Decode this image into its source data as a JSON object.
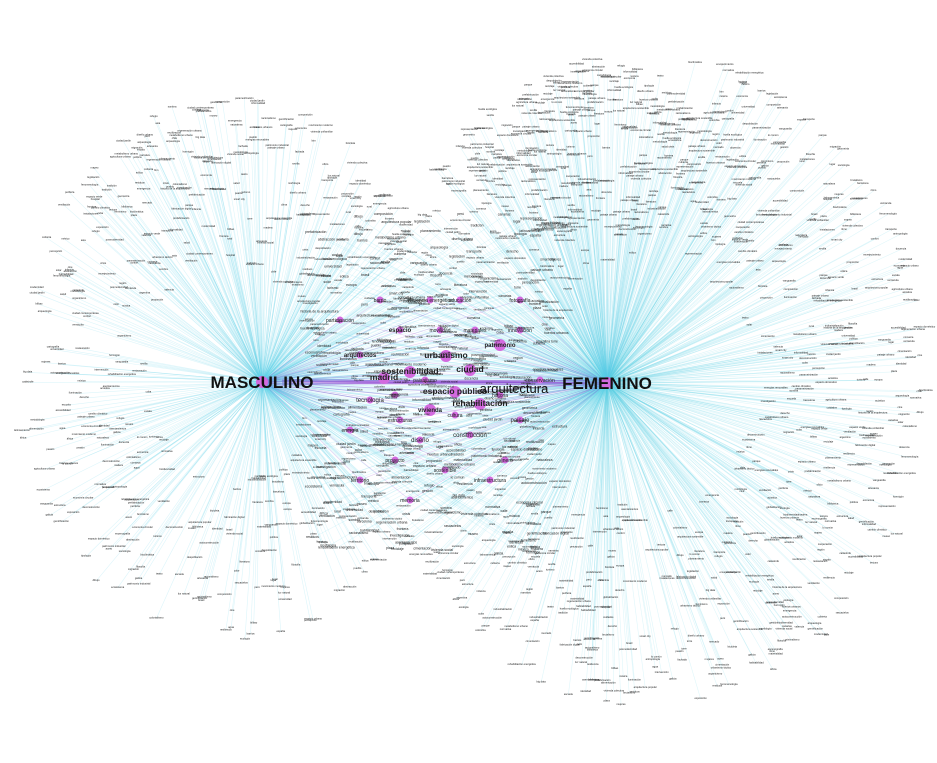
{
  "colors": {
    "background": "#ffffff",
    "edge_masculino": "#5fd0e8",
    "edge_femenino": "#5fd0e8",
    "edge_core": "#8a3fd0",
    "node_core": "#d36adf",
    "node_small": "#9ad9ee",
    "label": "#222222"
  },
  "hubs": {
    "masculino": "MASCULINO",
    "femenino": "FEMENINO",
    "arquitectura": "arquitectura"
  },
  "core_terms": [
    "madrid",
    "sostenibilidad",
    "urbanismo",
    "ciudad",
    "espacio público",
    "rehabilitación",
    "vivienda",
    "patrimonio",
    "espacio",
    "arquitectos",
    "tecnología",
    "diseño",
    "construcción",
    "paisaje",
    "género",
    "sostenible",
    "proyecto",
    "energía",
    "participación",
    "educación",
    "fotografía",
    "conservación",
    "eficiencia energética",
    "infraestructura",
    "memoria",
    "territorio",
    "innovación",
    "materiales",
    "estructuras",
    "movilidad",
    "barrio",
    "historia",
    "cultura",
    "arte",
    "paisajismo"
  ],
  "peripheral_terms": [
    "arquitectura sostenible",
    "arquitectura popular",
    "historia de la arquitectura",
    "patrimonio industrial",
    "vivienda social",
    "regeneración urbana",
    "diseño urbano",
    "espacio doméstico",
    "ciudad contemporánea",
    "crisis",
    "modernidad",
    "representación",
    "dibujo",
    "geometría",
    "ecología",
    "cooperación",
    "habitabilidad",
    "accesibilidad",
    "iluminación",
    "acústica",
    "planeamiento",
    "gestión",
    "metodología",
    "docencia",
    "investigación",
    "periferia",
    "ciudad jardín",
    "hormigón",
    "madera",
    "acero",
    "bioclimática",
    "confort",
    "rehabilitación energética",
    "reciclaje",
    "feminismo",
    "mujeres",
    "cuidados",
    "infancia",
    "envejecimiento",
    "turismo",
    "gentrificación",
    "espacio urbano",
    "calle",
    "plaza",
    "parque",
    "naturaleza",
    "agua",
    "clima",
    "cambio climático",
    "resiliencia",
    "smart city",
    "big data",
    "bim",
    "parametrización",
    "fabricación digital",
    "prefabricación",
    "industrialización",
    "tipología",
    "morfología",
    "cartografía",
    "mapeo",
    "narrativa",
    "percepción",
    "fenomenología",
    "identidad",
    "lugar",
    "paisaje urbano",
    "arqueología",
    "restauración",
    "intervención",
    "reutilización",
    "museo",
    "exposición",
    "escenografía",
    "teatro",
    "cine",
    "música",
    "literatura",
    "filosofía",
    "sociología",
    "antropología",
    "economía",
    "política",
    "derecho",
    "legislación",
    "normativa",
    "urbanismo táctico",
    "autoconstrucción",
    "informalidad",
    "asentamientos",
    "refugio",
    "emergencia",
    "catástrofe",
    "salud",
    "hospital",
    "escuela",
    "universidad",
    "biblioteca",
    "mercado",
    "vivienda colectiva",
    "vivienda unifamiliar",
    "rascacielos",
    "torre",
    "fachada",
    "cubierta",
    "estructura",
    "cimentación",
    "instalaciones",
    "ventilación",
    "sombra",
    "luz natural",
    "color",
    "textura",
    "escala",
    "proporción",
    "ritmo",
    "composición",
    "abstracción",
    "vanguardia",
    "movimiento moderno",
    "brutalismo",
    "racionalismo",
    "organicismo",
    "posmodernidad",
    "deconstrucción",
    "minimalismo",
    "lo común",
    "barrios",
    "huertos urbanos",
    "agricultura urbana",
    "alimentación",
    "residuos",
    "economía circular",
    "energías renovables",
    "solar",
    "eólica",
    "transporte",
    "bicicleta",
    "peatón",
    "espacio verde",
    "biodiversidad",
    "ecosistema",
    "metabolismo urbano",
    "huella ecológica",
    "materialidad",
    "artesanía",
    "oficio",
    "tradición",
    "vernácula",
    "rural",
    "despoblación",
    "pueblo",
    "comarca",
    "región",
    "frontera",
    "migración",
    "globalización",
    "colonialismo",
    "latinoamérica",
    "áfrica",
    "asia",
    "europa",
    "españa",
    "barcelona",
    "valencia",
    "sevilla",
    "bilbao",
    "galicia",
    "canarias",
    "méxico",
    "chile",
    "argentina",
    "colombia",
    "perú",
    "brasil",
    "cuba"
  ]
}
